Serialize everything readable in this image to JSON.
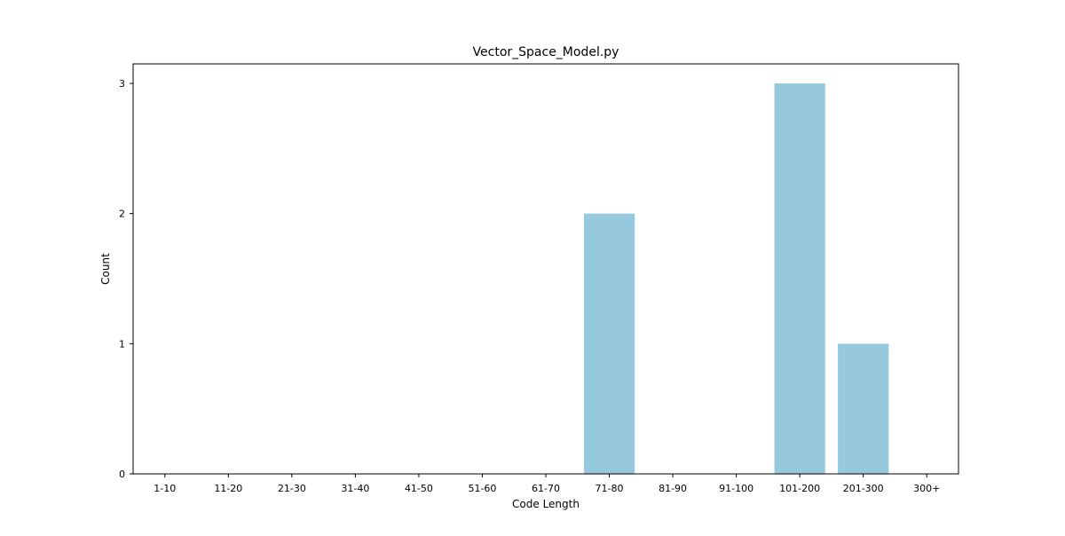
{
  "chart_data": {
    "type": "bar",
    "title": "Vector_Space_Model.py",
    "xlabel": "Code Length",
    "ylabel": "Count",
    "categories": [
      "1-10",
      "11-20",
      "21-30",
      "31-40",
      "41-50",
      "51-60",
      "61-70",
      "71-80",
      "81-90",
      "91-100",
      "101-200",
      "201-300",
      "300+"
    ],
    "values": [
      0,
      0,
      0,
      0,
      0,
      0,
      0,
      2,
      0,
      0,
      3,
      1,
      0
    ],
    "ylim": [
      0,
      3.15
    ],
    "yticks": [
      0,
      1,
      2,
      3
    ],
    "bar_color": "#96c9dd",
    "grid": false,
    "legend": "none"
  }
}
